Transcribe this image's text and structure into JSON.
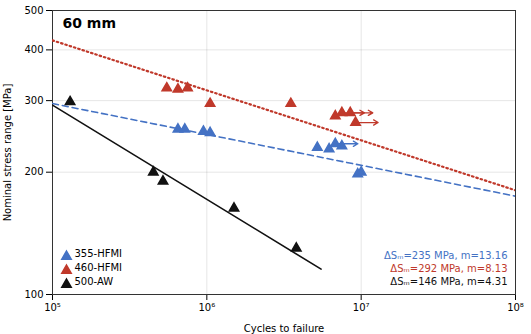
{
  "chart_data": {
    "type": "scatter",
    "title": "60 mm",
    "xlabel": "Cycles to failure",
    "ylabel": "Nominal stress range [MPa]",
    "log": true,
    "grid": true,
    "legend": "lower left",
    "xlim": [
      100000,
      100000000
    ],
    "ylim": [
      100,
      500
    ],
    "xticks": [
      {
        "value": 100000,
        "label": "10⁵"
      },
      {
        "value": 1000000,
        "label": "10⁶"
      },
      {
        "value": 10000000,
        "label": "10⁷"
      },
      {
        "value": 100000000,
        "label": "10⁸"
      }
    ],
    "yticks": [
      100,
      200,
      300,
      400,
      500
    ],
    "series": [
      {
        "type": "line",
        "color": "#4472C4",
        "line_style": "dashed",
        "x": [
          100000,
          100000000
        ],
        "values": [
          295.07,
          174.57
        ]
      },
      {
        "type": "line",
        "color": "#C0392B",
        "line_style": "dotted",
        "x": [
          100000,
          100000000
        ],
        "values": [
          422.1,
          180.47
        ]
      },
      {
        "type": "line",
        "color": "#111111",
        "line_style": "solid",
        "x": [
          100000,
          5500000
        ],
        "values": [
          292.56,
          115.46
        ]
      },
      {
        "type": "scatter",
        "name": "355-HFMI",
        "color": "#4472C4",
        "marker": "triangle",
        "x": [
          650000,
          720000,
          950000,
          1050000,
          5200000,
          6200000,
          6800000,
          7500000,
          9500000,
          10000000
        ],
        "values": [
          255,
          255,
          252,
          250,
          230,
          228,
          235,
          232,
          198,
          200
        ],
        "runout_x": [
          6800000
        ],
        "runout_values": [
          235
        ]
      },
      {
        "type": "scatter",
        "name": "460-HFMI",
        "color": "#C0392B",
        "marker": "triangle",
        "x": [
          550000,
          650000,
          750000,
          1050000,
          3500000,
          6800000,
          7500000,
          8500000,
          9200000
        ],
        "values": [
          322,
          320,
          322,
          295,
          295,
          275,
          280,
          280,
          265
        ],
        "runout_x": [
          7500000,
          8500000,
          9200000
        ],
        "runout_values": [
          280,
          280,
          265
        ]
      },
      {
        "type": "scatter",
        "name": "500-AW",
        "color": "#111111",
        "marker": "triangle",
        "x": [
          130000,
          450000,
          520000,
          1500000,
          3800000
        ],
        "values": [
          298,
          200,
          190,
          163,
          130
        ]
      }
    ],
    "annotations": [
      {
        "text": "ΔSₘ=235 MPa, m=13.16",
        "color": "#4472C4"
      },
      {
        "text": "ΔSₘ=292 MPa, m=8.13",
        "color": "#C0392B"
      },
      {
        "text": "ΔSₘ=146 MPa, m=4.31",
        "color": "#111111"
      }
    ]
  }
}
